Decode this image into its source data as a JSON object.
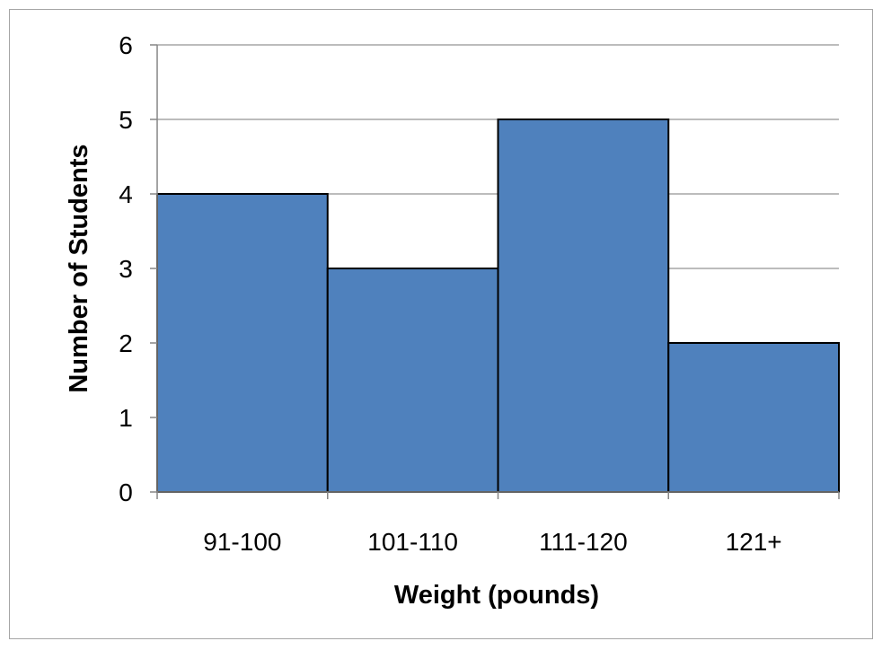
{
  "chart_data": {
    "type": "bar",
    "categories": [
      "91-100",
      "101-110",
      "111-120",
      "121+"
    ],
    "values": [
      4,
      3,
      5,
      2
    ],
    "title": "",
    "xlabel": "Weight (pounds)",
    "ylabel": "Number of Students",
    "ylim": [
      0,
      6
    ],
    "yticks": [
      "0",
      "1",
      "2",
      "3",
      "4",
      "5",
      "6"
    ],
    "grid": true,
    "legend": "none",
    "bar_color": "#4f81bd",
    "bar_edge_color": "#000000",
    "grid_color": "#a6a6a6"
  }
}
